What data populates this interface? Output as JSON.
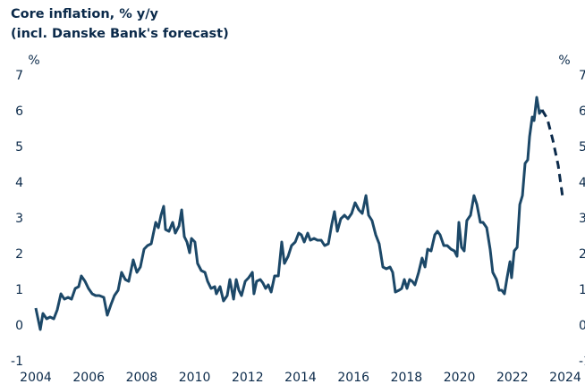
{
  "chart_data": {
    "type": "line",
    "title": "Core inflation, % y/y",
    "subtitle": "(incl. Danske Bank's forecast)",
    "y_unit": "%",
    "y2_unit": "%",
    "grid": false,
    "xlim": [
      2004,
      2024
    ],
    "xticks": [
      2004,
      2006,
      2008,
      2010,
      2012,
      2014,
      2016,
      2018,
      2020,
      2022,
      2024
    ],
    "ylim": [
      -1,
      7
    ],
    "yticks": [
      -1,
      0,
      1,
      2,
      3,
      4,
      5,
      6,
      7
    ],
    "y2lim": [
      -1,
      7
    ],
    "y2ticks": [
      -1,
      0,
      1,
      2,
      3,
      4,
      5,
      6,
      7
    ],
    "series": [
      {
        "color": "#1c4868",
        "dashed": false,
        "x": [
          2004.0,
          2004.17,
          2004.27,
          2004.41,
          2004.54,
          2004.68,
          2004.81,
          2004.95,
          2005.08,
          2005.22,
          2005.35,
          2005.49,
          2005.62,
          2005.72,
          2005.86,
          2005.99,
          2006.13,
          2006.26,
          2006.4,
          2006.57,
          2006.7,
          2006.84,
          2006.97,
          2007.11,
          2007.24,
          2007.38,
          2007.51,
          2007.68,
          2007.82,
          2007.95,
          2008.09,
          2008.22,
          2008.36,
          2008.53,
          2008.63,
          2008.73,
          2008.83,
          2008.9,
          2009.03,
          2009.17,
          2009.27,
          2009.41,
          2009.51,
          2009.61,
          2009.71,
          2009.81,
          2009.88,
          2010.01,
          2010.11,
          2010.25,
          2010.39,
          2010.49,
          2010.62,
          2010.76,
          2010.82,
          2010.96,
          2011.09,
          2011.23,
          2011.33,
          2011.47,
          2011.57,
          2011.67,
          2011.77,
          2011.91,
          2012.04,
          2012.18,
          2012.24,
          2012.34,
          2012.48,
          2012.58,
          2012.68,
          2012.78,
          2012.89,
          2013.02,
          2013.16,
          2013.29,
          2013.39,
          2013.53,
          2013.66,
          2013.8,
          2013.93,
          2014.03,
          2014.14,
          2014.27,
          2014.37,
          2014.51,
          2014.64,
          2014.78,
          2014.91,
          2015.05,
          2015.18,
          2015.28,
          2015.39,
          2015.52,
          2015.66,
          2015.79,
          2015.93,
          2016.06,
          2016.2,
          2016.33,
          2016.47,
          2016.57,
          2016.7,
          2016.84,
          2016.97,
          2017.11,
          2017.24,
          2017.38,
          2017.48,
          2017.58,
          2017.72,
          2017.82,
          2017.92,
          2018.02,
          2018.12,
          2018.22,
          2018.32,
          2018.46,
          2018.59,
          2018.7,
          2018.8,
          2018.93,
          2019.07,
          2019.17,
          2019.27,
          2019.41,
          2019.54,
          2019.68,
          2019.81,
          2019.91,
          2019.98,
          2020.08,
          2020.18,
          2020.28,
          2020.42,
          2020.55,
          2020.66,
          2020.79,
          2020.89,
          2021.03,
          2021.16,
          2021.26,
          2021.4,
          2021.5,
          2021.6,
          2021.7,
          2021.8,
          2021.91,
          2021.97,
          2022.07,
          2022.18,
          2022.28,
          2022.38,
          2022.48,
          2022.58,
          2022.65,
          2022.75,
          2022.82,
          2022.92,
          2023.02,
          2023.12
        ],
        "values": [
          0.5,
          -0.1,
          0.35,
          0.2,
          0.25,
          0.2,
          0.45,
          0.9,
          0.75,
          0.8,
          0.75,
          1.05,
          1.1,
          1.4,
          1.25,
          1.05,
          0.9,
          0.85,
          0.85,
          0.8,
          0.3,
          0.6,
          0.85,
          1.0,
          1.5,
          1.3,
          1.25,
          1.85,
          1.5,
          1.65,
          2.15,
          2.25,
          2.3,
          2.9,
          2.75,
          3.1,
          3.35,
          2.7,
          2.65,
          2.9,
          2.6,
          2.8,
          3.25,
          2.5,
          2.35,
          2.05,
          2.45,
          2.35,
          1.75,
          1.55,
          1.5,
          1.25,
          1.05,
          1.1,
          0.9,
          1.1,
          0.7,
          0.85,
          1.3,
          0.75,
          1.3,
          1.0,
          0.85,
          1.25,
          1.35,
          1.5,
          0.9,
          1.25,
          1.3,
          1.2,
          1.05,
          1.15,
          0.95,
          1.4,
          1.4,
          2.35,
          1.75,
          1.95,
          2.25,
          2.35,
          2.6,
          2.55,
          2.35,
          2.6,
          2.4,
          2.45,
          2.4,
          2.4,
          2.25,
          2.3,
          2.85,
          3.2,
          2.65,
          3.0,
          3.1,
          3.0,
          3.15,
          3.45,
          3.25,
          3.15,
          3.65,
          3.1,
          2.95,
          2.55,
          2.3,
          1.65,
          1.6,
          1.65,
          1.5,
          0.95,
          1.0,
          1.05,
          1.3,
          1.05,
          1.3,
          1.25,
          1.15,
          1.5,
          1.9,
          1.65,
          2.15,
          2.1,
          2.55,
          2.65,
          2.55,
          2.25,
          2.25,
          2.15,
          2.1,
          1.95,
          2.9,
          2.2,
          2.1,
          2.95,
          3.1,
          3.65,
          3.4,
          2.9,
          2.9,
          2.75,
          2.15,
          1.5,
          1.3,
          1.0,
          1.0,
          0.9,
          1.35,
          1.8,
          1.35,
          2.1,
          2.2,
          3.4,
          3.65,
          4.55,
          4.65,
          5.3,
          5.85,
          5.75,
          6.4,
          5.95,
          6.05
        ]
      },
      {
        "color": "#0b2a4a",
        "dashed": true,
        "x": [
          2023.12,
          2023.32,
          2023.53,
          2023.73,
          2023.9
        ],
        "values": [
          6.05,
          5.8,
          5.2,
          4.5,
          3.6
        ]
      }
    ]
  }
}
